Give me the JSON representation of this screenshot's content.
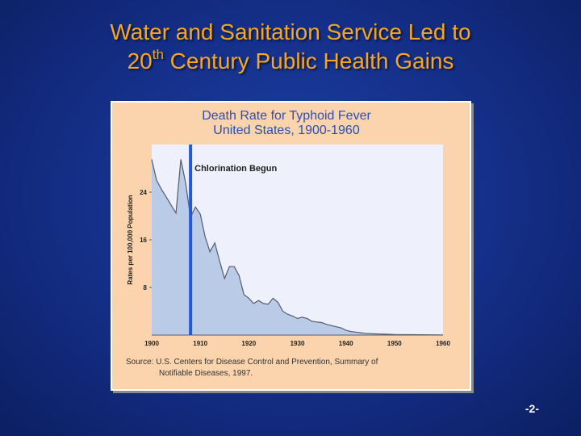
{
  "slide": {
    "title_line1": "Water and Sanitation Service Led to",
    "title_line2_prefix": "20",
    "title_line2_sup": "th",
    "title_line2_suffix": " Century Public Health Gains",
    "page_number": "-2-"
  },
  "colors": {
    "title": "#f5a623",
    "chart_title": "#2b4fb5",
    "panel_bg": "#fbd3ac",
    "plot_bg": "#eef0fb",
    "area_fill": "#b9cbe6",
    "area_line": "#555c6c",
    "marker_line": "#2458d6"
  },
  "chart_data": {
    "type": "area",
    "title": "Death Rate for Typhoid Fever",
    "subtitle": "United States, 1900-1960",
    "xlabel": "",
    "ylabel": "Rates per 100,000 Population",
    "x_ticks": [
      1900,
      1910,
      1920,
      1930,
      1940,
      1950,
      1960
    ],
    "y_ticks": [
      8,
      16,
      24
    ],
    "xlim": [
      1900,
      1960
    ],
    "ylim": [
      0,
      32
    ],
    "grid": false,
    "series": [
      {
        "name": "Death rate for typhoid fever",
        "x": [
          1900,
          1901,
          1902,
          1903,
          1904,
          1905,
          1906,
          1907,
          1908,
          1909,
          1910,
          1911,
          1912,
          1913,
          1914,
          1915,
          1916,
          1917,
          1918,
          1919,
          1920,
          1921,
          1922,
          1923,
          1924,
          1925,
          1926,
          1927,
          1928,
          1929,
          1930,
          1931,
          1932,
          1933,
          1934,
          1935,
          1936,
          1937,
          1938,
          1939,
          1940,
          1941,
          1942,
          1943,
          1944,
          1945,
          1946,
          1947,
          1948,
          1949,
          1950,
          1955,
          1960
        ],
        "values": [
          29.5,
          26,
          24.5,
          23.2,
          21.8,
          20.5,
          29.5,
          25.5,
          19.8,
          21.5,
          20.3,
          16.5,
          14,
          15.5,
          12.4,
          9.5,
          11.5,
          11.5,
          10,
          6.8,
          6.2,
          5.3,
          5.8,
          5.3,
          5.2,
          6.2,
          5.5,
          4,
          3.5,
          3.2,
          2.8,
          3,
          2.8,
          2.3,
          2.2,
          2.1,
          1.8,
          1.6,
          1.4,
          1.2,
          0.8,
          0.6,
          0.5,
          0.4,
          0.3,
          0.25,
          0.2,
          0.18,
          0.15,
          0.12,
          0.1,
          0.05,
          0.02
        ]
      }
    ],
    "annotations": [
      {
        "text": "Chlorination Begun",
        "x": 1908
      }
    ],
    "source_line1": "Source: U.S. Centers for Disease Control and Prevention, Summary of",
    "source_line2": "Notifiable Diseases, 1997."
  }
}
